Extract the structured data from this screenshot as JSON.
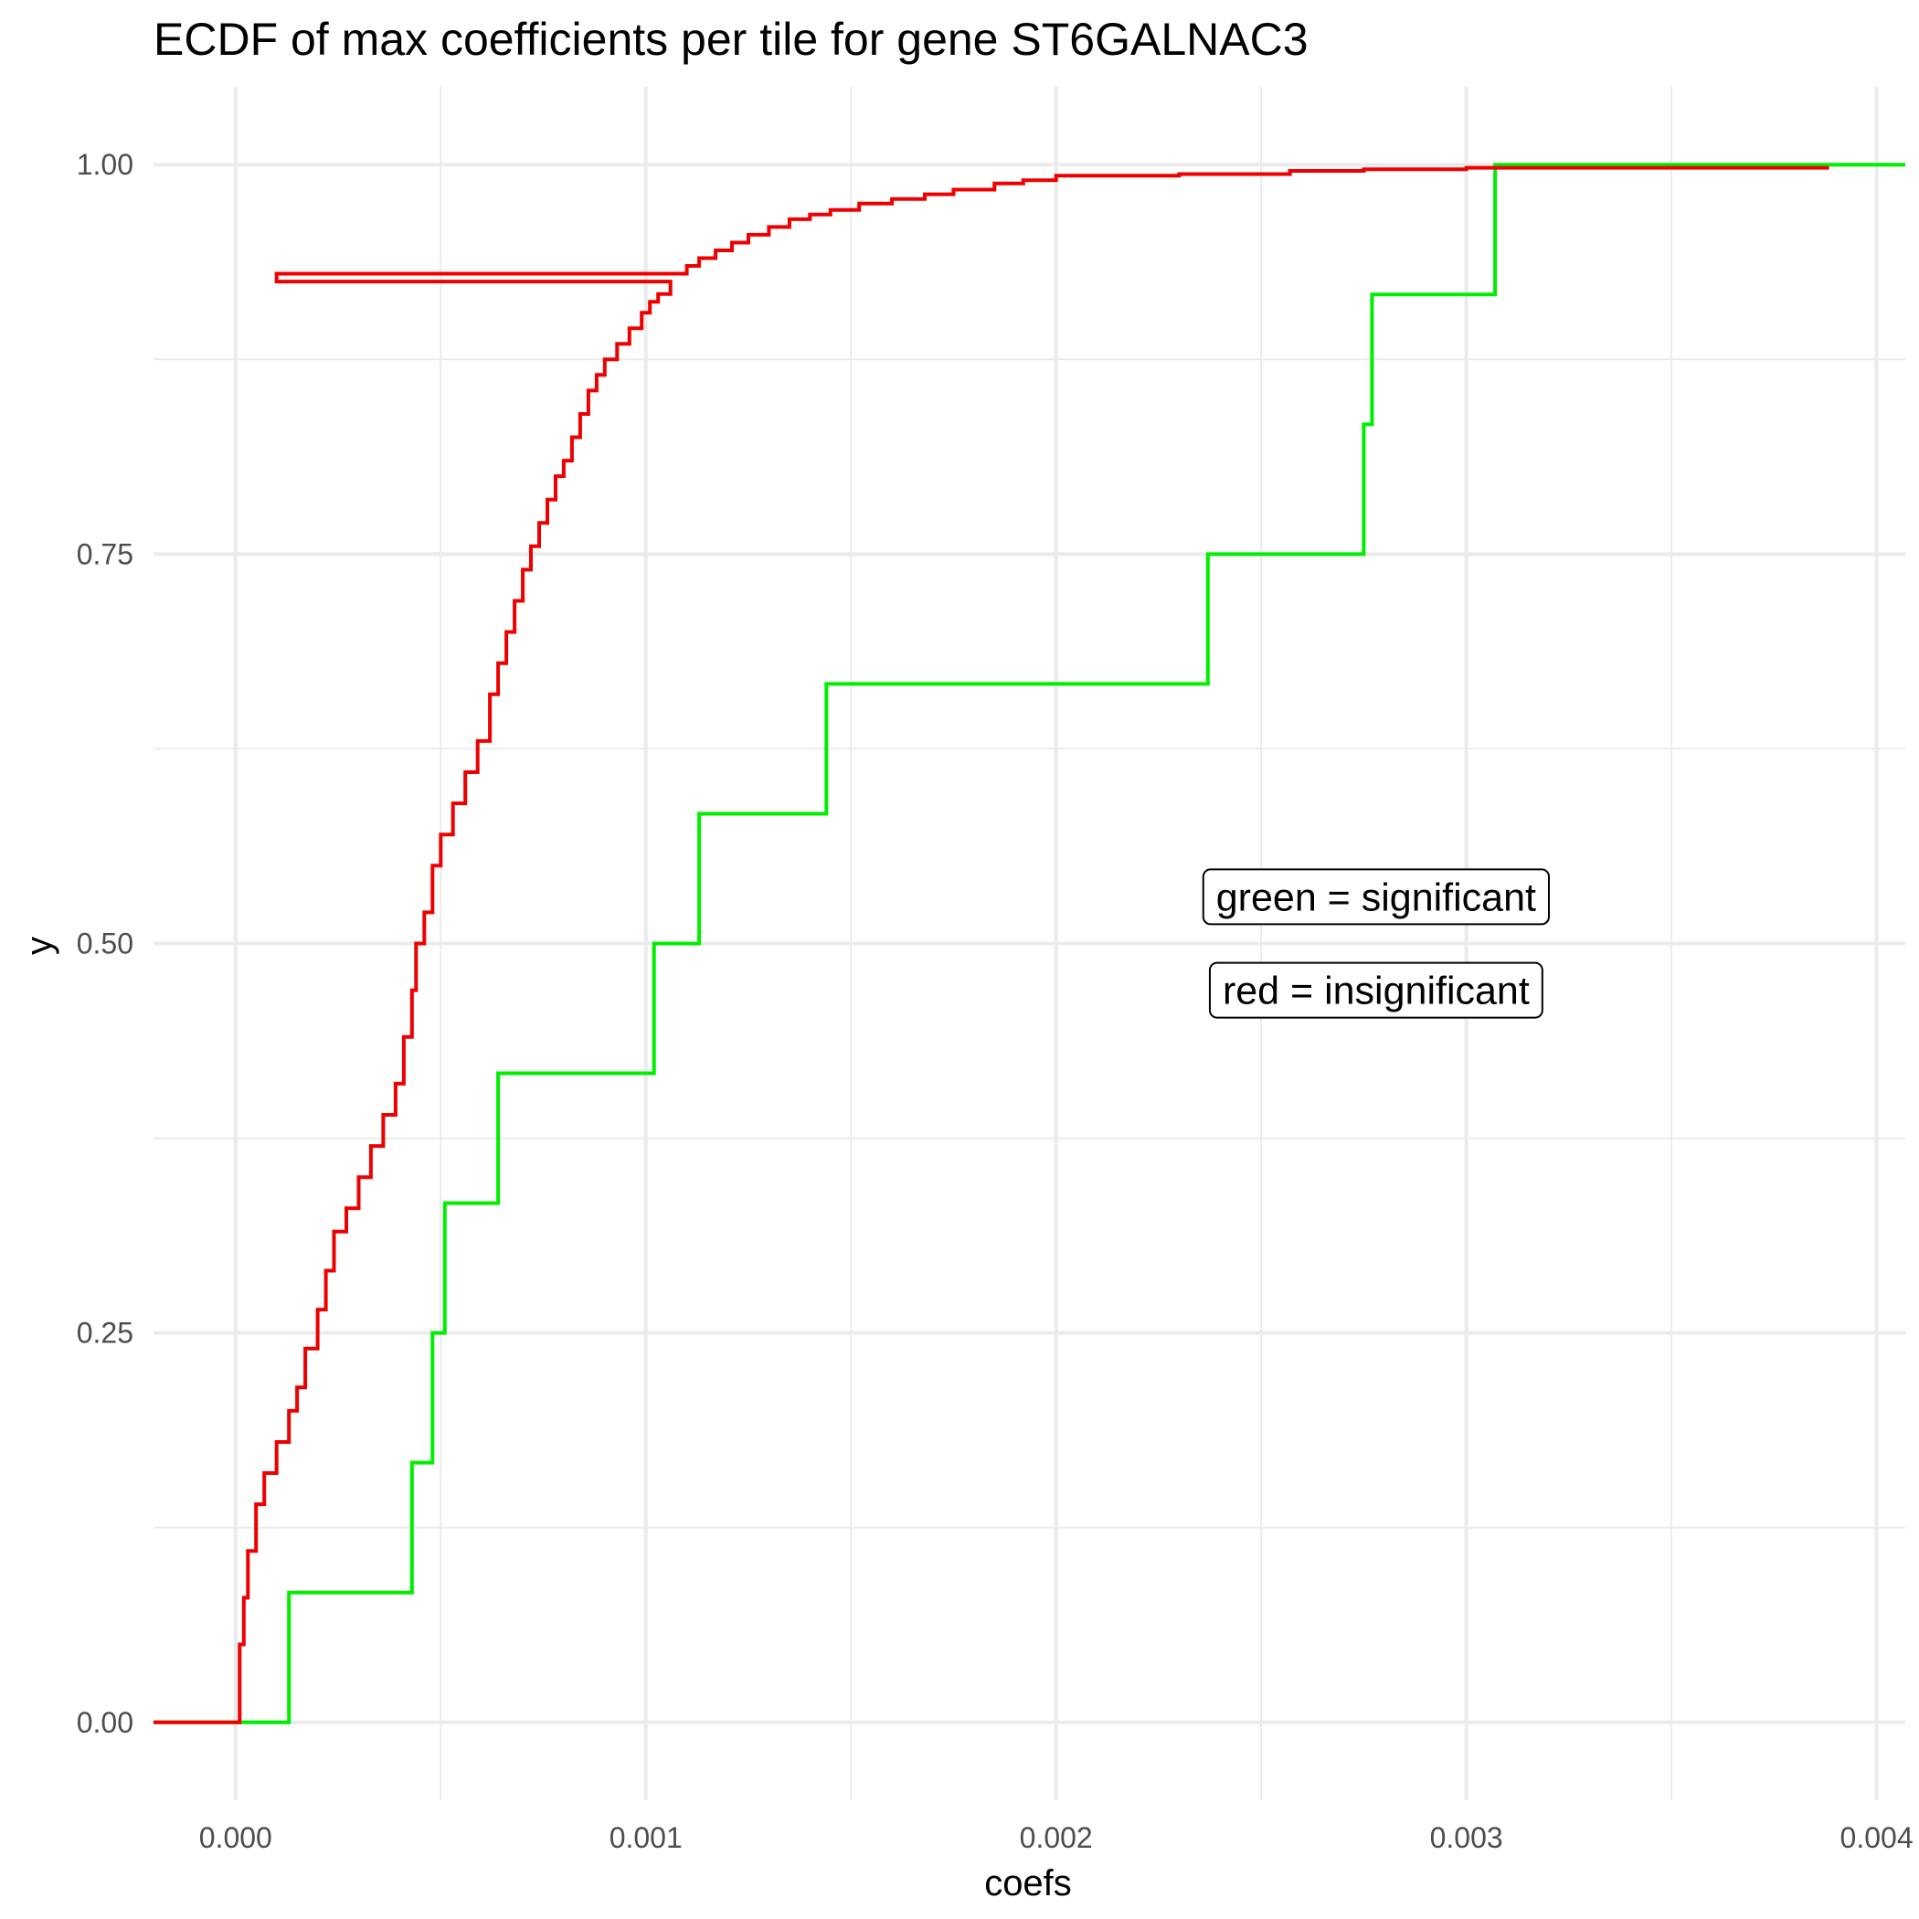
{
  "chart_data": {
    "type": "line",
    "step": true,
    "title": "ECDF of max coefficients per tile for gene ST6GALNAC3",
    "xlabel": "coefs",
    "ylabel": "y",
    "xlim": [
      -0.0002,
      0.00407
    ],
    "ylim": [
      -0.05,
      1.05
    ],
    "x_ticks": [
      0.0,
      0.001,
      0.002,
      0.003,
      0.004
    ],
    "x_tick_labels": [
      "0.000",
      "0.001",
      "0.002",
      "0.003",
      "0.004"
    ],
    "y_ticks": [
      0.0,
      0.25,
      0.5,
      0.75,
      1.0
    ],
    "y_tick_labels": [
      "0.00",
      "0.25",
      "0.50",
      "0.75",
      "1.00"
    ],
    "grid": true,
    "annotations": [
      {
        "text": "green = significant",
        "x": 0.00278,
        "y": 0.53
      },
      {
        "text": "red = insignificant",
        "x": 0.00278,
        "y": 0.47
      }
    ],
    "series": [
      {
        "color": "#00ee00",
        "x": [
          -0.0002,
          0.00013,
          0.00043,
          0.00048,
          0.00051,
          0.00064,
          0.00102,
          0.00113,
          0.00144,
          0.00237,
          0.00275,
          0.00277,
          0.00307,
          0.00407
        ],
        "y": [
          0.0,
          0.0833,
          0.1667,
          0.25,
          0.3333,
          0.4167,
          0.5,
          0.5833,
          0.6667,
          0.75,
          0.8333,
          0.9167,
          1.0,
          1.0
        ]
      },
      {
        "color": "#ee0000",
        "x": [
          -0.0002,
          0.0,
          1e-05,
          2e-05,
          3e-05,
          5e-05,
          7e-05,
          0.0001,
          0.00013,
          0.00015,
          0.00017,
          0.0002,
          0.00022,
          0.00024,
          0.00027,
          0.0003,
          0.00033,
          0.00036,
          0.00039,
          0.00041,
          0.00043,
          0.00044,
          0.00046,
          0.00048,
          0.0005,
          0.00053,
          0.00056,
          0.00059,
          0.00062,
          0.00064,
          0.00066,
          0.00068,
          0.0007,
          0.00072,
          0.00074,
          0.00076,
          0.00078,
          0.0008,
          0.00082,
          0.00084,
          0.00086,
          0.00088,
          0.0009,
          0.00093,
          0.00096,
          0.00099,
          0.00101,
          0.00103,
          0.00106,
          0.0001,
          0.0011,
          0.00113,
          0.00117,
          0.00121,
          0.00125,
          0.0013,
          0.00135,
          0.0014,
          0.00145,
          0.00152,
          0.0016,
          0.00168,
          0.00175,
          0.00185,
          0.00192,
          0.002,
          0.0023,
          0.00257,
          0.00275,
          0.003,
          0.0035,
          0.00388
        ],
        "y": [
          0.0,
          0.0,
          0.05,
          0.08,
          0.11,
          0.14,
          0.16,
          0.18,
          0.2,
          0.215,
          0.24,
          0.265,
          0.29,
          0.315,
          0.33,
          0.35,
          0.37,
          0.39,
          0.41,
          0.44,
          0.47,
          0.5,
          0.52,
          0.55,
          0.57,
          0.59,
          0.61,
          0.63,
          0.66,
          0.68,
          0.7,
          0.72,
          0.74,
          0.755,
          0.77,
          0.785,
          0.8,
          0.81,
          0.825,
          0.84,
          0.855,
          0.865,
          0.875,
          0.885,
          0.895,
          0.905,
          0.912,
          0.917,
          0.925,
          0.93,
          0.935,
          0.94,
          0.945,
          0.95,
          0.955,
          0.96,
          0.965,
          0.968,
          0.971,
          0.975,
          0.978,
          0.981,
          0.984,
          0.988,
          0.99,
          0.993,
          0.994,
          0.996,
          0.997,
          0.998,
          0.998,
          0.999
        ]
      }
    ]
  }
}
